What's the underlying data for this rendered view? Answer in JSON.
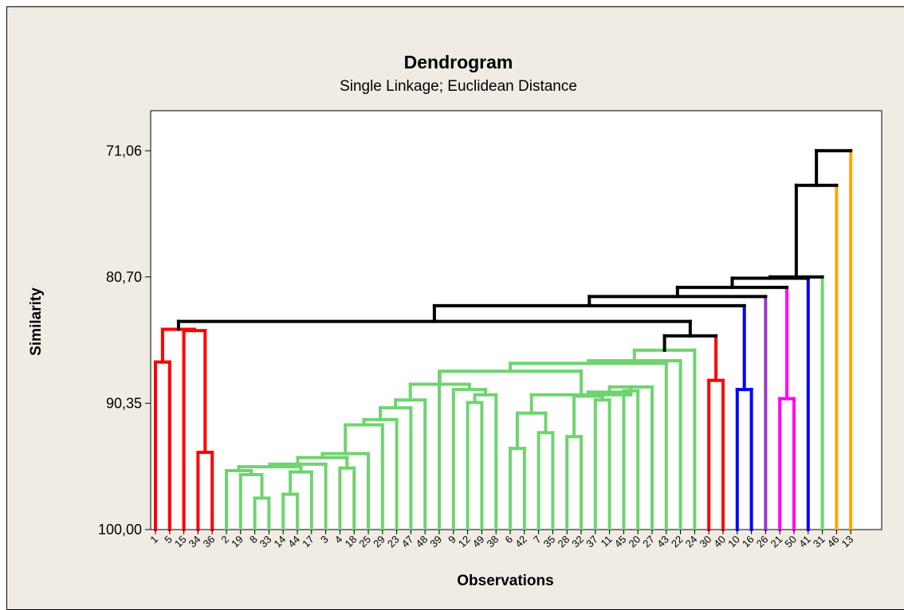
{
  "chart_data": {
    "type": "dendrogram",
    "title": "Dendrogram",
    "subtitle": "Single Linkage; Euclidean Distance",
    "xlabel": "Observations",
    "ylabel": "Similarity",
    "ylim": [
      100.0,
      68.0
    ],
    "y_ticks": [
      {
        "value": 71.06,
        "label": "71,06"
      },
      {
        "value": 80.7,
        "label": "80,70"
      },
      {
        "value": 90.35,
        "label": "90,35"
      },
      {
        "value": 100.0,
        "label": "100,00"
      }
    ],
    "leaves": [
      "1",
      "5",
      "15",
      "34",
      "36",
      "2",
      "19",
      "8",
      "33",
      "14",
      "44",
      "17",
      "3",
      "4",
      "18",
      "25",
      "29",
      "23",
      "47",
      "48",
      "39",
      "9",
      "12",
      "49",
      "38",
      "6",
      "42",
      "7",
      "35",
      "28",
      "32",
      "37",
      "11",
      "45",
      "20",
      "27",
      "43",
      "22",
      "24",
      "30",
      "40",
      "10",
      "16",
      "26",
      "21",
      "50",
      "41",
      "31",
      "46",
      "13"
    ],
    "colors": {
      "red": "#ff0000",
      "green": "#6fd46f",
      "blue": "#0000ff",
      "purple": "#9933cc",
      "magenta": "#ff00ff",
      "orange": "#ffa500",
      "black": "#000000"
    },
    "merges": [
      {
        "a": "34",
        "b": "36",
        "sim": 94.1,
        "color": "red"
      },
      {
        "a": "1",
        "b": "5",
        "sim": 87.2,
        "color": "red"
      },
      {
        "a": "15",
        "b": "m1",
        "sim": 84.8,
        "color": "red"
      },
      {
        "a": "m2",
        "b": "m3",
        "sim": 84.7,
        "color": "red"
      },
      {
        "a": "8",
        "b": "33",
        "sim": 97.6,
        "color": "green"
      },
      {
        "a": "14",
        "b": "44",
        "sim": 97.3,
        "color": "green"
      },
      {
        "a": "19",
        "b": "m5",
        "sim": 95.8,
        "color": "green"
      },
      {
        "a": "m6",
        "b": "17",
        "sim": 95.6,
        "color": "green"
      },
      {
        "a": "2",
        "b": "m7",
        "sim": 95.5,
        "color": "green"
      },
      {
        "a": "m9",
        "b": "m8",
        "sim": 95.2,
        "color": "green"
      },
      {
        "a": "m10",
        "b": "3",
        "sim": 95.0,
        "color": "green"
      },
      {
        "a": "4",
        "b": "18",
        "sim": 95.3,
        "color": "green"
      },
      {
        "a": "m11",
        "b": "m12",
        "sim": 94.5,
        "color": "green"
      },
      {
        "a": "m13",
        "b": "25",
        "sim": 94.2,
        "color": "green"
      },
      {
        "a": "m14",
        "b": "29",
        "sim": 92.0,
        "color": "green"
      },
      {
        "a": "m15",
        "b": "23",
        "sim": 91.6,
        "color": "green"
      },
      {
        "a": "m16",
        "b": "47",
        "sim": 90.7,
        "color": "green"
      },
      {
        "a": "m17",
        "b": "48",
        "sim": 90.1,
        "color": "green"
      },
      {
        "a": "12",
        "b": "49",
        "sim": 90.3,
        "color": "green"
      },
      {
        "a": "m19",
        "b": "38",
        "sim": 89.7,
        "color": "green"
      },
      {
        "a": "9",
        "b": "m20",
        "sim": 89.3,
        "color": "green"
      },
      {
        "a": "m18",
        "b": "m21",
        "sim": 88.9,
        "color": "green"
      },
      {
        "a": "39",
        "b": "m22",
        "sim": 88.0,
        "color": "green"
      },
      {
        "a": "6",
        "b": "42",
        "sim": 93.8,
        "color": "green"
      },
      {
        "a": "7",
        "b": "35",
        "sim": 92.6,
        "color": "green"
      },
      {
        "a": "m24",
        "b": "m25",
        "sim": 91.1,
        "color": "green"
      },
      {
        "a": "28",
        "b": "32",
        "sim": 92.9,
        "color": "green"
      },
      {
        "a": "37",
        "b": "11",
        "sim": 90.1,
        "color": "green"
      },
      {
        "a": "m27",
        "b": "m28",
        "sim": 89.8,
        "color": "green"
      },
      {
        "a": "45",
        "b": "20",
        "sim": 89.4,
        "color": "green"
      },
      {
        "a": "m29",
        "b": "m30",
        "sim": 89.5,
        "color": "green"
      },
      {
        "a": "m31",
        "b": "27",
        "sim": 89.1,
        "color": "green"
      },
      {
        "a": "m26",
        "b": "m32",
        "sim": 89.7,
        "color": "green"
      },
      {
        "a": "m23",
        "b": "m33",
        "sim": 87.9,
        "color": "green"
      },
      {
        "a": "m34",
        "b": "43",
        "sim": 87.3,
        "color": "green"
      },
      {
        "a": "m35",
        "b": "22",
        "sim": 87.1,
        "color": "green"
      },
      {
        "a": "m36",
        "b": "24",
        "sim": 86.3,
        "color": "green"
      },
      {
        "a": "30",
        "b": "40",
        "sim": 88.6,
        "color": "red"
      },
      {
        "a": "m37",
        "b": "m38",
        "sim": 85.2,
        "color": "black"
      },
      {
        "a": "m4",
        "b": "m39",
        "sim": 84.1,
        "color": "black"
      },
      {
        "a": "10",
        "b": "16",
        "sim": 89.3,
        "color": "blue"
      },
      {
        "a": "m40",
        "b": "m41",
        "sim": 82.9,
        "color": "black"
      },
      {
        "a": "m42",
        "b": "26",
        "sim": 82.2,
        "color": "black"
      },
      {
        "a": "21",
        "b": "50",
        "sim": 90.0,
        "color": "magenta"
      },
      {
        "a": "m43",
        "b": "m44",
        "sim": 81.5,
        "color": "black"
      },
      {
        "a": "m45",
        "b": "41",
        "sim": 80.8,
        "color": "black"
      },
      {
        "a": "m46",
        "b": "31",
        "sim": 80.7,
        "color": "black"
      },
      {
        "a": "m47",
        "b": "46",
        "sim": 73.7,
        "color": "black"
      },
      {
        "a": "m48",
        "b": "13",
        "sim": 71.06,
        "color": "black"
      }
    ],
    "segment_colors": {
      "26": "purple",
      "41": "blue",
      "31": "green",
      "46": "orange",
      "13": "orange",
      "24": "green",
      "m38": "red",
      "m41": "blue",
      "m44": "magenta"
    }
  }
}
